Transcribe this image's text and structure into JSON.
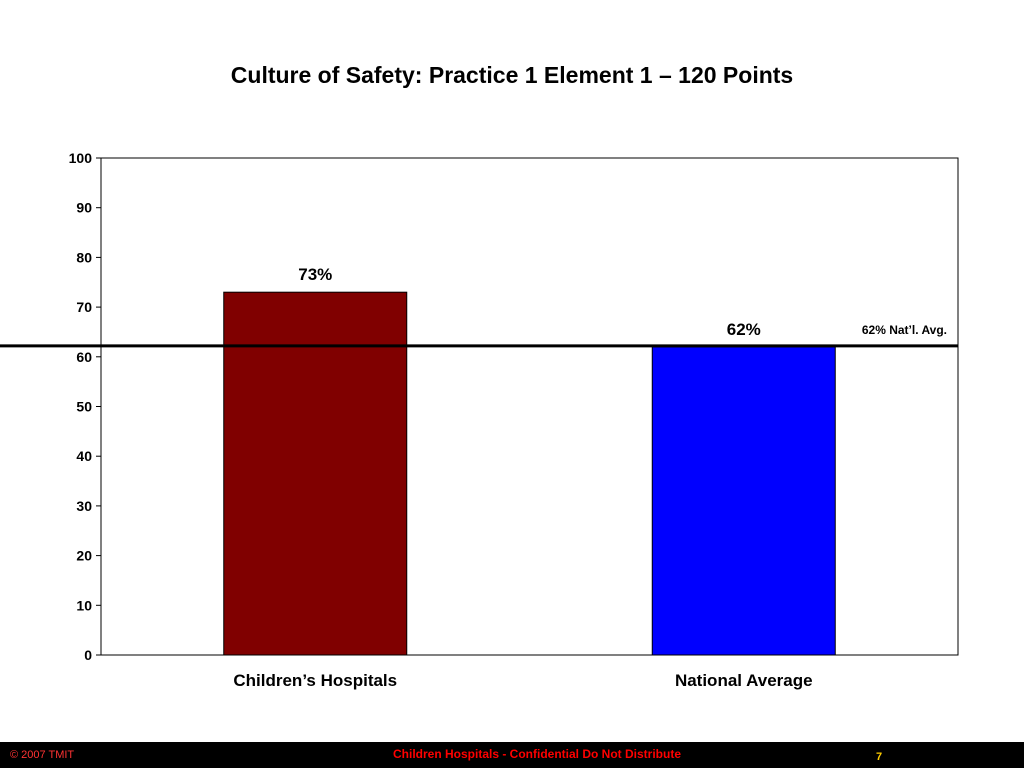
{
  "slide": {
    "title": "Culture of Safety: Practice 1 Element 1 – 120 Points"
  },
  "chart_data": {
    "type": "bar",
    "title": "Culture of Safety: Practice 1 Element 1 – 120 Points",
    "xlabel": "",
    "ylabel": "",
    "ylim": [
      0,
      100
    ],
    "yticks": [
      0,
      10,
      20,
      30,
      40,
      50,
      60,
      70,
      80,
      90,
      100
    ],
    "categories": [
      "Children’s Hospitals",
      "National Average"
    ],
    "values": [
      73,
      62
    ],
    "value_labels": [
      "73%",
      "62%"
    ],
    "colors": [
      "#800000",
      "#0000ff"
    ],
    "reference_line": {
      "value": 62,
      "label": "62% Nat’l. Avg."
    },
    "grid": false,
    "legend": "none"
  },
  "footer": {
    "copyright": "© 2007 TMIT",
    "confidential": "Children Hospitals - Confidential Do Not Distribute",
    "page_number": "7"
  }
}
